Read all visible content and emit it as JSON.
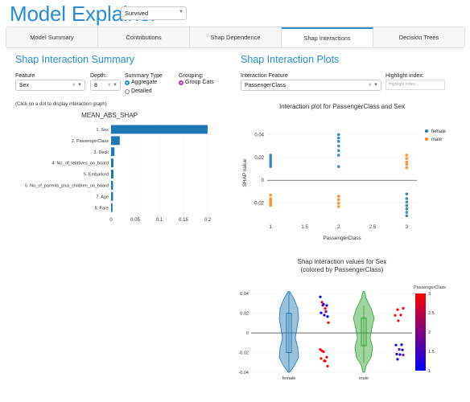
{
  "app": {
    "title": "Model Explainer"
  },
  "target_select": {
    "value": "Survived"
  },
  "tabs": [
    {
      "label": "Model Summary"
    },
    {
      "label": "Contributions"
    },
    {
      "label": "Shap Dependence"
    },
    {
      "label": "Shap Interactions",
      "active": true
    },
    {
      "label": "Decision Trees"
    }
  ],
  "summary": {
    "title": "Shap Interaction Summary",
    "feature_label": "Feature",
    "feature_value": "Sex",
    "depth_label": "Depth:",
    "depth_value": "8",
    "summary_type_label": "Summary Type",
    "opt_aggregate": "Aggregate",
    "opt_detailed": "Detailed",
    "grouping_label": "Grouping:",
    "opt_group_cats": "Group Cats",
    "hint": "(Click on a dot to display interaction graph)"
  },
  "plots": {
    "title": "Shap Interaction Plots",
    "interaction_label": "Interaction Feature",
    "interaction_value": "PassengerClass",
    "highlight_label": "Highlight index:",
    "highlight_placeholder": "Highlight index..."
  },
  "colors": {
    "accent": "#2a8cd3",
    "bar": "#1f77b4",
    "female": "#1f77b4",
    "male": "#ff7f0e",
    "violin_female": "#1f77b4",
    "violin_male": "#2ca02c"
  },
  "chart_data": [
    {
      "type": "bar",
      "title": "MEAN_ABS_SHAP",
      "orientation": "horizontal",
      "categories": [
        "1. Sex",
        "2. PassengerClass",
        "3. Deck",
        "4. No_of_relatives_on_board",
        "5. Embarked",
        "6. No_of_parents_plus_children_on_board",
        "7. Age",
        "8. Fare"
      ],
      "values": [
        0.2,
        0.018,
        0.007,
        0.005,
        0.005,
        0.004,
        0.004,
        0.003
      ],
      "xlim": [
        0,
        0.2
      ],
      "xticks": [
        "0",
        "0.05",
        "0.1",
        "0.15",
        "0.2"
      ]
    },
    {
      "type": "scatter",
      "title": "Interaction plot for PassengerClass and Sex",
      "xlabel": "PassengerClass",
      "ylabel": "SHAP value",
      "xlim": [
        0.95,
        3.15
      ],
      "ylim": [
        -0.035,
        0.048
      ],
      "xticks": [
        "1",
        "1.5",
        "2",
        "2.5",
        "3"
      ],
      "yticks": [
        "-0.02",
        "0",
        "0.02",
        "0.04"
      ],
      "series": [
        {
          "name": "female",
          "points": [
            {
              "x": 1,
              "y": 0.022
            },
            {
              "x": 1,
              "y": 0.02
            },
            {
              "x": 1,
              "y": 0.018
            },
            {
              "x": 1,
              "y": 0.016
            },
            {
              "x": 1,
              "y": 0.014
            },
            {
              "x": 1,
              "y": 0.012
            },
            {
              "x": 2,
              "y": 0.04
            },
            {
              "x": 2,
              "y": 0.037
            },
            {
              "x": 2,
              "y": 0.034
            },
            {
              "x": 2,
              "y": 0.03
            },
            {
              "x": 2,
              "y": 0.026
            },
            {
              "x": 2,
              "y": 0.022
            },
            {
              "x": 2,
              "y": 0.012
            },
            {
              "x": 3,
              "y": -0.012
            },
            {
              "x": 3,
              "y": -0.016
            },
            {
              "x": 3,
              "y": -0.019
            },
            {
              "x": 3,
              "y": -0.022
            },
            {
              "x": 3,
              "y": -0.025
            },
            {
              "x": 3,
              "y": -0.028
            },
            {
              "x": 3,
              "y": -0.031
            }
          ]
        },
        {
          "name": "male",
          "points": [
            {
              "x": 1,
              "y": -0.013
            },
            {
              "x": 1,
              "y": -0.016
            },
            {
              "x": 1,
              "y": -0.018
            },
            {
              "x": 1,
              "y": -0.02
            },
            {
              "x": 1,
              "y": -0.022
            },
            {
              "x": 2,
              "y": -0.014
            },
            {
              "x": 2,
              "y": -0.017
            },
            {
              "x": 2,
              "y": -0.02
            },
            {
              "x": 2,
              "y": -0.023
            },
            {
              "x": 3,
              "y": 0.022
            },
            {
              "x": 3,
              "y": 0.019
            },
            {
              "x": 3,
              "y": 0.016
            },
            {
              "x": 3,
              "y": 0.014
            },
            {
              "x": 3,
              "y": 0.011
            }
          ]
        }
      ]
    },
    {
      "type": "violin",
      "title": "Shap interaction values for Sex",
      "subtitle": "(colored by PassengerClass)",
      "categories": [
        "female",
        "male"
      ],
      "ylim": [
        -0.04,
        0.045
      ],
      "yticks": [
        "-0.04",
        "-0.02",
        "0",
        "0.02",
        "0.04"
      ],
      "colorbar": {
        "title": "PassengerClass",
        "min": 1,
        "max": 3,
        "ticks": [
          "1",
          "1.5",
          "2",
          "2.5",
          "3"
        ]
      },
      "points": [
        {
          "cat": "female",
          "y": 0.035,
          "c": 1
        },
        {
          "cat": "female",
          "y": 0.03,
          "c": 1
        },
        {
          "cat": "female",
          "y": 0.027,
          "c": 1.1
        },
        {
          "cat": "female",
          "y": 0.022,
          "c": 1
        },
        {
          "cat": "female",
          "y": 0.018,
          "c": 1.2
        },
        {
          "cat": "female",
          "y": 0.015,
          "c": 1
        },
        {
          "cat": "female",
          "y": 0.032,
          "c": 3
        },
        {
          "cat": "female",
          "y": 0.024,
          "c": 2.9
        },
        {
          "cat": "female",
          "y": 0.012,
          "c": 3
        },
        {
          "cat": "female",
          "y": 0.028,
          "c": 2
        },
        {
          "cat": "female",
          "y": 0.02,
          "c": 2.1
        },
        {
          "cat": "female",
          "y": -0.016,
          "c": 3
        },
        {
          "cat": "female",
          "y": -0.02,
          "c": 3
        },
        {
          "cat": "female",
          "y": -0.023,
          "c": 2.8
        },
        {
          "cat": "female",
          "y": -0.026,
          "c": 3
        },
        {
          "cat": "female",
          "y": -0.03,
          "c": 2.9
        },
        {
          "cat": "female",
          "y": -0.033,
          "c": 3
        },
        {
          "cat": "female",
          "y": -0.019,
          "c": 2.7
        },
        {
          "cat": "female",
          "y": -0.027,
          "c": 3
        },
        {
          "cat": "male",
          "y": 0.025,
          "c": 3
        },
        {
          "cat": "male",
          "y": 0.022,
          "c": 3
        },
        {
          "cat": "male",
          "y": 0.019,
          "c": 2.9
        },
        {
          "cat": "male",
          "y": 0.017,
          "c": 3
        },
        {
          "cat": "male",
          "y": 0.014,
          "c": 2.8
        },
        {
          "cat": "male",
          "y": -0.012,
          "c": 1
        },
        {
          "cat": "male",
          "y": -0.014,
          "c": 1.1
        },
        {
          "cat": "male",
          "y": -0.016,
          "c": 2
        },
        {
          "cat": "male",
          "y": -0.018,
          "c": 1
        },
        {
          "cat": "male",
          "y": -0.02,
          "c": 1.5
        },
        {
          "cat": "male",
          "y": -0.022,
          "c": 1
        },
        {
          "cat": "male",
          "y": -0.024,
          "c": 2
        },
        {
          "cat": "male",
          "y": -0.026,
          "c": 1.2
        }
      ]
    }
  ]
}
